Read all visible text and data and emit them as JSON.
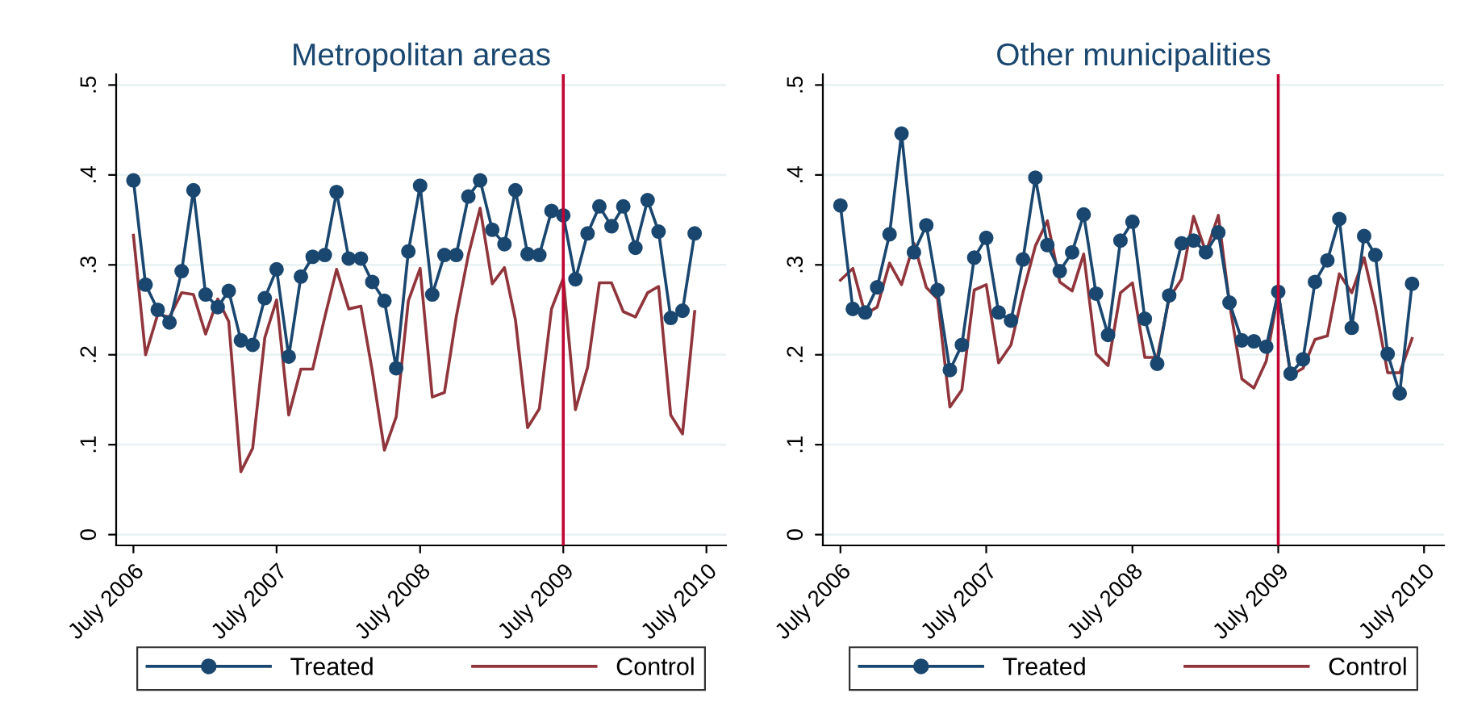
{
  "chart_data": [
    {
      "type": "line",
      "title": "Metropolitan areas",
      "x": [
        "2006-07",
        "2006-08",
        "2006-09",
        "2006-10",
        "2006-11",
        "2006-12",
        "2007-01",
        "2007-02",
        "2007-03",
        "2007-04",
        "2007-05",
        "2007-06",
        "2007-07",
        "2007-08",
        "2007-09",
        "2007-10",
        "2007-11",
        "2007-12",
        "2008-01",
        "2008-02",
        "2008-03",
        "2008-04",
        "2008-05",
        "2008-06",
        "2008-07",
        "2008-08",
        "2008-09",
        "2008-10",
        "2008-11",
        "2008-12",
        "2009-01",
        "2009-02",
        "2009-03",
        "2009-04",
        "2009-05",
        "2009-06",
        "2009-07",
        "2009-08",
        "2009-09",
        "2009-10",
        "2009-11",
        "2009-12",
        "2010-01",
        "2010-02",
        "2010-03",
        "2010-04",
        "2010-05",
        "2010-06"
      ],
      "series": [
        {
          "name": "Treated",
          "color": "#1a476f",
          "marker": "circle",
          "values": [
            0.394,
            0.278,
            0.25,
            0.236,
            0.293,
            0.383,
            0.267,
            0.253,
            0.271,
            0.216,
            0.211,
            0.263,
            0.295,
            0.198,
            0.287,
            0.309,
            0.311,
            0.381,
            0.307,
            0.307,
            0.281,
            0.26,
            0.185,
            0.315,
            0.388,
            0.267,
            0.311,
            0.311,
            0.376,
            0.394,
            0.339,
            0.323,
            0.383,
            0.312,
            0.311,
            0.36,
            0.355,
            0.284,
            0.335,
            0.365,
            0.343,
            0.365,
            0.319,
            0.372,
            0.337,
            0.241,
            0.249,
            0.335
          ]
        },
        {
          "name": "Control",
          "color": "#90353b",
          "marker": "none",
          "values": [
            0.333,
            0.2,
            0.245,
            0.242,
            0.269,
            0.267,
            0.223,
            0.262,
            0.237,
            0.07,
            0.096,
            0.219,
            0.261,
            0.133,
            0.184,
            0.184,
            0.242,
            0.295,
            0.251,
            0.254,
            0.182,
            0.094,
            0.131,
            0.26,
            0.296,
            0.153,
            0.158,
            0.242,
            0.311,
            0.363,
            0.279,
            0.297,
            0.239,
            0.119,
            0.14,
            0.251,
            0.285,
            0.139,
            0.186,
            0.28,
            0.28,
            0.248,
            0.242,
            0.269,
            0.276,
            0.133,
            0.112,
            0.248
          ]
        }
      ],
      "xlim": [
        "2006-05-18",
        "2010-08-20"
      ],
      "xticks": [
        {
          "value": "2006-07",
          "label": "July 2006"
        },
        {
          "value": "2007-07",
          "label": "July 2007"
        },
        {
          "value": "2008-07",
          "label": "July 2008"
        },
        {
          "value": "2009-07",
          "label": "July 2009"
        },
        {
          "value": "2010-07",
          "label": "July 2010"
        }
      ],
      "ylim": [
        -0.012,
        0.512
      ],
      "yticks": [
        {
          "value": 0,
          "label": "0"
        },
        {
          "value": 0.1,
          "label": ".1"
        },
        {
          "value": 0.2,
          "label": ".2"
        },
        {
          "value": 0.3,
          "label": ".3"
        },
        {
          "value": 0.4,
          "label": ".4"
        },
        {
          "value": 0.5,
          "label": ".5"
        }
      ],
      "ref_lines": [
        {
          "axis": "x",
          "value": "2009-07",
          "color": "#c10534"
        }
      ],
      "grid": "y",
      "legend": "bottom",
      "line_style": "solid"
    },
    {
      "type": "line",
      "title": "Other municipalities",
      "x": [
        "2006-07",
        "2006-08",
        "2006-09",
        "2006-10",
        "2006-11",
        "2006-12",
        "2007-01",
        "2007-02",
        "2007-03",
        "2007-04",
        "2007-05",
        "2007-06",
        "2007-07",
        "2007-08",
        "2007-09",
        "2007-10",
        "2007-11",
        "2007-12",
        "2008-01",
        "2008-02",
        "2008-03",
        "2008-04",
        "2008-05",
        "2008-06",
        "2008-07",
        "2008-08",
        "2008-09",
        "2008-10",
        "2008-11",
        "2008-12",
        "2009-01",
        "2009-02",
        "2009-03",
        "2009-04",
        "2009-05",
        "2009-06",
        "2009-07",
        "2009-08",
        "2009-09",
        "2009-10",
        "2009-11",
        "2009-12",
        "2010-01",
        "2010-02",
        "2010-03",
        "2010-04",
        "2010-05",
        "2010-06"
      ],
      "series": [
        {
          "name": "Treated",
          "color": "#1a476f",
          "marker": "circle",
          "values": [
            0.366,
            0.251,
            0.247,
            0.275,
            0.334,
            0.446,
            0.314,
            0.344,
            0.272,
            0.183,
            0.211,
            0.308,
            0.33,
            0.247,
            0.238,
            0.306,
            0.397,
            0.322,
            0.293,
            0.314,
            0.356,
            0.268,
            0.222,
            0.327,
            0.348,
            0.24,
            0.19,
            0.266,
            0.324,
            0.327,
            0.314,
            0.336,
            0.258,
            0.216,
            0.215,
            0.209,
            0.27,
            0.179,
            0.195,
            0.281,
            0.305,
            0.351,
            0.23,
            0.332,
            0.311,
            0.201,
            0.157,
            0.279
          ]
        },
        {
          "name": "Control",
          "color": "#90353b",
          "marker": "none",
          "values": [
            0.283,
            0.296,
            0.245,
            0.253,
            0.302,
            0.278,
            0.324,
            0.275,
            0.262,
            0.142,
            0.161,
            0.272,
            0.278,
            0.191,
            0.211,
            0.269,
            0.321,
            0.349,
            0.281,
            0.271,
            0.312,
            0.201,
            0.188,
            0.269,
            0.28,
            0.197,
            0.197,
            0.263,
            0.284,
            0.354,
            0.314,
            0.355,
            0.257,
            0.173,
            0.163,
            0.193,
            0.269,
            0.177,
            0.185,
            0.217,
            0.221,
            0.29,
            0.269,
            0.308,
            0.254,
            0.18,
            0.18,
            0.218
          ]
        }
      ],
      "xlim": [
        "2006-05-18",
        "2010-08-20"
      ],
      "xticks": [
        {
          "value": "2006-07",
          "label": "July 2006"
        },
        {
          "value": "2007-07",
          "label": "July 2007"
        },
        {
          "value": "2008-07",
          "label": "July 2008"
        },
        {
          "value": "2009-07",
          "label": "July 2009"
        },
        {
          "value": "2010-07",
          "label": "July 2010"
        }
      ],
      "ylim": [
        -0.012,
        0.512
      ],
      "yticks": [
        {
          "value": 0,
          "label": "0"
        },
        {
          "value": 0.1,
          "label": ".1"
        },
        {
          "value": 0.2,
          "label": ".2"
        },
        {
          "value": 0.3,
          "label": ".3"
        },
        {
          "value": 0.4,
          "label": ".4"
        },
        {
          "value": 0.5,
          "label": ".5"
        }
      ],
      "ref_lines": [
        {
          "axis": "x",
          "value": "2009-07",
          "color": "#c10534"
        }
      ],
      "grid": "y",
      "legend": "bottom",
      "line_style": "solid"
    }
  ]
}
